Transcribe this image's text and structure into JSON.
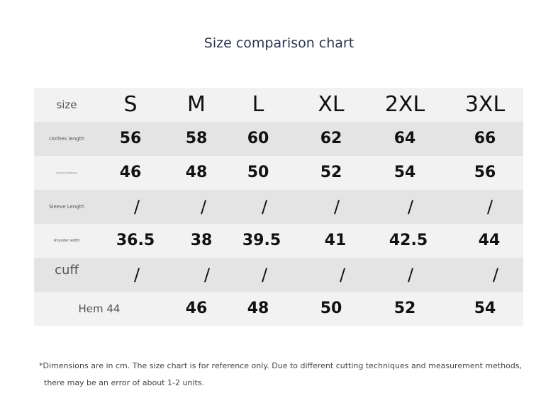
{
  "title": "Size comparison chart",
  "header": {
    "label": "size",
    "sizes": [
      "S",
      "M",
      "L",
      "XL",
      "2XL",
      "3XL"
    ]
  },
  "rows": [
    {
      "label": "clothes length",
      "values": [
        "56",
        "58",
        "60",
        "62",
        "64",
        "66"
      ]
    },
    {
      "label": "chest circumference",
      "values": [
        "46",
        "48",
        "50",
        "52",
        "54",
        "56"
      ]
    },
    {
      "label": "Sleeve Length",
      "values": [
        "/",
        "/",
        "/",
        "/",
        "/",
        "/"
      ]
    },
    {
      "label": "shoulder width",
      "values": [
        "36.5",
        "38",
        "39.5",
        "41",
        "42.5",
        "44"
      ]
    },
    {
      "label": "cuff",
      "values": [
        "/",
        "/",
        "/",
        "/",
        "/",
        "/"
      ]
    },
    {
      "label": "Hem 44",
      "values": [
        "",
        "46",
        "48",
        "50",
        "52",
        "54"
      ]
    }
  ],
  "note": {
    "line1": "*Dimensions are in cm. The size chart is for reference only. Due to different cutting techniques and measurement methods,",
    "line2": "there may be an error of about 1-2 units."
  }
}
